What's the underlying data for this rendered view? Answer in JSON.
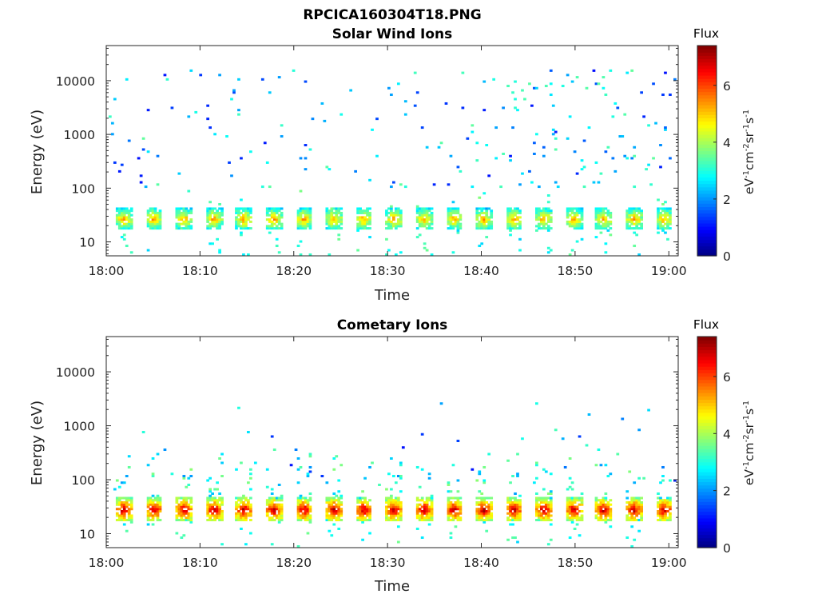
{
  "figure": {
    "title": "RPCICA160304T18.PNG"
  },
  "chart_data": [
    {
      "type": "heatmap",
      "title": "Solar Wind Ions",
      "xlabel": "Time",
      "ylabel": "Energy (eV)",
      "x_ticks": [
        "18:00",
        "18:10",
        "18:20",
        "18:30",
        "18:40",
        "18:50",
        "19:00"
      ],
      "x_range_minutes": [
        0,
        61
      ],
      "y_scale": "log",
      "y_ticks": [
        10,
        100,
        1000,
        10000
      ],
      "y_tick_labels": [
        "10",
        "100",
        "1000",
        "10000"
      ],
      "y_range": [
        5.5,
        45000
      ],
      "colorbar": {
        "title": "Flux",
        "unit": "eV-1cm-2sr-1s-1",
        "range": [
          0,
          7.4
        ],
        "ticks": [
          "0",
          "2",
          "4",
          "6"
        ],
        "colormap": "jet"
      },
      "description_values": {
        "main_band": {
          "energy_eV": [
            17,
            37
          ],
          "flux": [
            2.5,
            5.5
          ],
          "pulse_period_minutes": 3.2
        },
        "sparse_scatter": {
          "energy_eV": [
            100,
            15000
          ],
          "flux": [
            1.0,
            3.5
          ]
        }
      }
    },
    {
      "type": "heatmap",
      "title": "Cometary Ions",
      "xlabel": "Time",
      "ylabel": "Energy (eV)",
      "x_ticks": [
        "18:00",
        "18:10",
        "18:20",
        "18:30",
        "18:40",
        "18:50",
        "19:00"
      ],
      "x_range_minutes": [
        0,
        61
      ],
      "y_scale": "log",
      "y_ticks": [
        10,
        100,
        1000,
        10000
      ],
      "y_tick_labels": [
        "10",
        "100",
        "1000",
        "10000"
      ],
      "y_range": [
        5.5,
        45000
      ],
      "colorbar": {
        "title": "Flux",
        "unit": "eV-1cm-2sr-1s-1",
        "range": [
          0,
          7.4
        ],
        "ticks": [
          "0",
          "2",
          "4",
          "6"
        ],
        "colormap": "jet"
      },
      "description_values": {
        "main_band": {
          "energy_eV": [
            17,
            40
          ],
          "flux": [
            3.5,
            7.2
          ],
          "pulse_period_minutes": 3.2
        },
        "sparse_scatter": {
          "energy_eV": [
            60,
            3000
          ],
          "flux": [
            1.0,
            3.5
          ]
        }
      }
    }
  ]
}
